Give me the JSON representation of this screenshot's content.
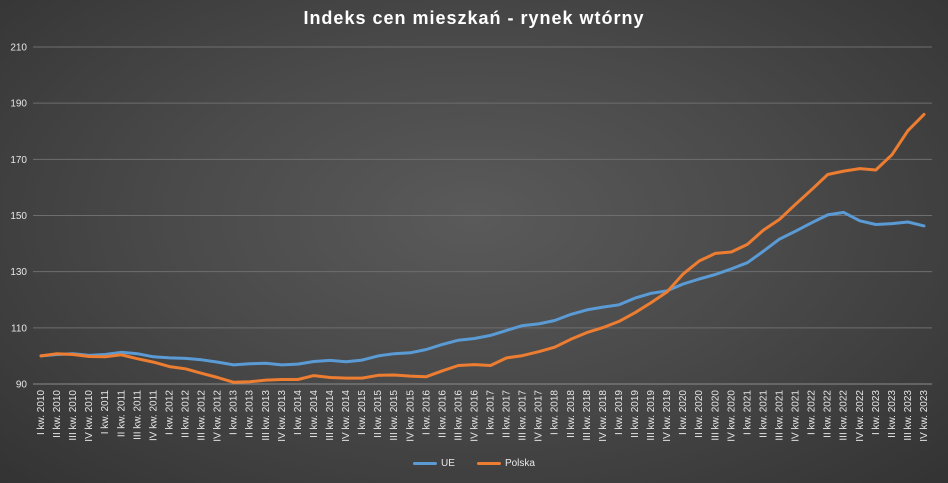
{
  "chart_data": {
    "type": "line",
    "title": "Indeks cen mieszkań - rynek wtórny",
    "xlabel": "",
    "ylabel": "",
    "ylim": [
      90,
      210
    ],
    "yticks": [
      90,
      110,
      130,
      150,
      170,
      190,
      210
    ],
    "grid": "horizontal",
    "legend_position": "bottom",
    "categories": [
      "I kw. 2010",
      "II kw. 2010",
      "III kw. 2010",
      "IV kw. 2010",
      "I kw. 2011",
      "II kw. 2011",
      "III kw. 2011",
      "IV kw. 2011",
      "I kw. 2012",
      "II kw. 2012",
      "III kw. 2012",
      "IV kw. 2012",
      "I kw. 2013",
      "II kw. 2013",
      "III kw. 2013",
      "IV kw. 2013",
      "I kw. 2014",
      "II kw. 2014",
      "III kw. 2014",
      "IV kw. 2014",
      "I kw. 2015",
      "II kw. 2015",
      "III kw. 2015",
      "IV kw. 2015",
      "I kw. 2016",
      "II kw. 2016",
      "III kw. 2016",
      "IV kw. 2016",
      "I kw. 2017",
      "II kw. 2017",
      "III kw. 2017",
      "IV kw. 2017",
      "I kw. 2018",
      "II kw. 2018",
      "III kw. 2018",
      "IV kw. 2018",
      "I kw. 2019",
      "II kw. 2019",
      "III kw. 2019",
      "IV kw. 2019",
      "I kw. 2020",
      "II kw. 2020",
      "III kw. 2020",
      "IV kw. 2020",
      "I kw. 2021",
      "II kw. 2021",
      "III kw. 2021",
      "IV kw. 2021",
      "I kw. 2022",
      "II kw. 2022",
      "III kw. 2022",
      "IV kw. 2022",
      "I kw. 2023",
      "II kw. 2023",
      "III kw. 2023",
      "IV kw. 2023"
    ],
    "series": [
      {
        "name": "UE",
        "color": "#5b9bd5",
        "values": [
          100,
          100.5,
          100.8,
          100.2,
          100.5,
          101.3,
          100.8,
          99.7,
          99.3,
          99.1,
          98.6,
          97.8,
          96.8,
          97.2,
          97.4,
          96.8,
          97.1,
          98.0,
          98.4,
          97.9,
          98.5,
          100.0,
          100.8,
          101.1,
          102.3,
          104.1,
          105.6,
          106.2,
          107.3,
          109.1,
          110.8,
          111.4,
          112.6,
          114.8,
          116.4,
          117.4,
          118.2,
          120.6,
          122.3,
          123.2,
          125.6,
          127.4,
          129.0,
          131.0,
          133.2,
          137.3,
          141.6,
          144.4,
          147.4,
          150.2,
          151.1,
          148.1,
          146.8,
          147.1,
          147.7,
          146.3
        ]
      },
      {
        "name": "Polska",
        "color": "#ed7d31",
        "values": [
          100,
          100.8,
          100.5,
          99.8,
          99.7,
          100.4,
          99.0,
          97.8,
          96.2,
          95.4,
          93.8,
          92.3,
          90.6,
          90.8,
          91.4,
          91.6,
          91.6,
          93.0,
          92.3,
          92.1,
          92.1,
          93.1,
          93.2,
          92.8,
          92.6,
          94.7,
          96.6,
          96.9,
          96.6,
          99.3,
          100.1,
          101.5,
          103.1,
          105.9,
          108.3,
          110.1,
          112.3,
          115.4,
          119.0,
          122.8,
          129.2,
          133.8,
          136.5,
          137.0,
          139.7,
          144.8,
          148.6,
          154.0,
          159.2,
          164.6,
          165.8,
          166.7,
          166.2,
          171.6,
          180.2,
          186.0
        ]
      }
    ]
  }
}
